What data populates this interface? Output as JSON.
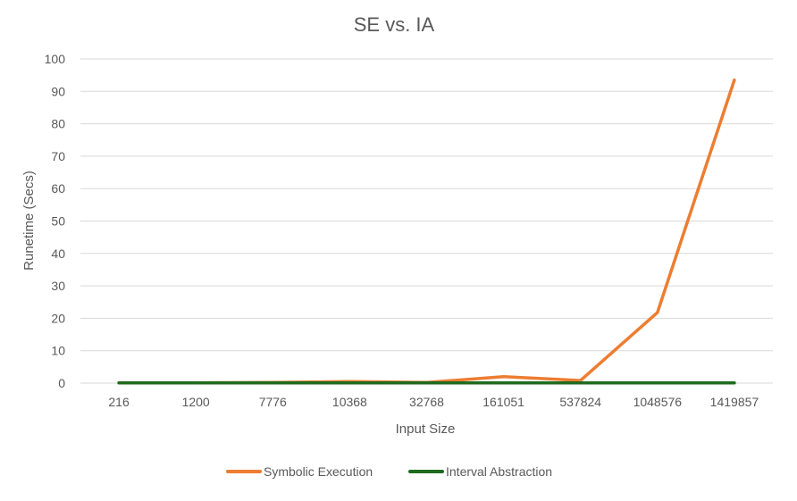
{
  "chart_data": {
    "type": "line",
    "title": "SE vs. IA",
    "xlabel": "Input Size",
    "ylabel": "Runetime (Secs)",
    "categories": [
      "216",
      "1200",
      "7776",
      "10368",
      "32768",
      "161051",
      "537824",
      "1048576",
      "1419857"
    ],
    "ylim": [
      0,
      100
    ],
    "yticks": [
      0,
      10,
      20,
      30,
      40,
      50,
      60,
      70,
      80,
      90,
      100
    ],
    "grid": true,
    "legend_position": "bottom",
    "series": [
      {
        "name": "Symbolic Execution",
        "color": "#ED7D31",
        "values": [
          0.1,
          0.1,
          0.2,
          0.5,
          0.2,
          2.0,
          0.8,
          21.8,
          93.5
        ]
      },
      {
        "name": "Interval Abstraction",
        "color": "#1E6B1E",
        "values": [
          0.05,
          0.05,
          0.05,
          0.05,
          0.05,
          0.05,
          0.05,
          0.05,
          0.05
        ]
      }
    ]
  }
}
